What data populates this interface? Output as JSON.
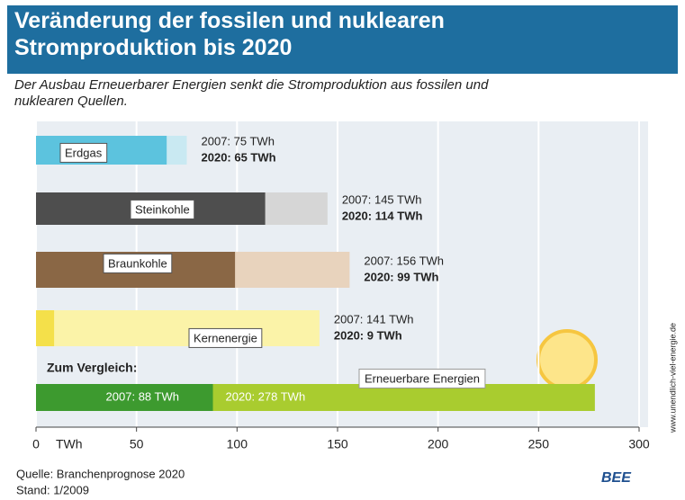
{
  "chart_data": {
    "type": "bar",
    "title": "Veränderung der fossilen und nuklearen Stromproduktion bis 2020",
    "subtitle": "Der Ausbau Erneuerbarer Energien senkt die Stromproduktion aus fossilen und nuklearen Quellen.",
    "categories": [
      "Erdgas",
      "Steinkohle",
      "Braunkohle",
      "Kernenergie",
      "Erneuerbare Energien"
    ],
    "series": [
      {
        "colors": [
          "#c9e9f2",
          "#d6d6d6",
          "#e8d3bd",
          "#fbf3a8",
          "#3d9a2f"
        ],
        "values": [
          75,
          145,
          156,
          141,
          88
        ],
        "value_labels": [
          "2007: 75 TWh",
          "2007: 145 TWh",
          "2007: 156 TWh",
          "2007: 141 TWh",
          "2007: 88 TWh"
        ]
      },
      {
        "colors": [
          "#5cc3de",
          "#4e4e4e",
          "#8a6745",
          "#f4e04a",
          "#a9cc2f"
        ],
        "values": [
          65,
          114,
          99,
          9,
          278
        ],
        "value_labels": [
          "2020: 65 TWh",
          "2020: 114 TWh",
          "2020: 99 TWh",
          "2020: 9 TWh",
          "2020: 278 TWh"
        ]
      }
    ],
    "xlim": [
      0,
      300
    ],
    "xticks": [
      0,
      50,
      100,
      150,
      200,
      250,
      300
    ],
    "xlabel": "TWh",
    "grid": true,
    "annotation": "Zum Vergleich:",
    "source": "Quelle: Branchenprognose 2020",
    "date": "Stand: 1/2009",
    "credit": "www.unendlich-viel-energie.de",
    "logo": "BEE"
  }
}
